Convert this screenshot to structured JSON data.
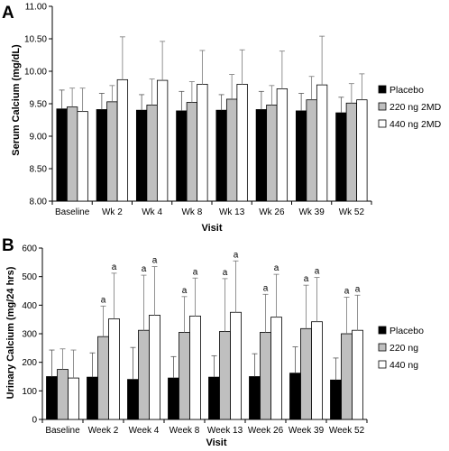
{
  "chart_data": [
    {
      "panel_label": "A",
      "type": "bar",
      "ylabel": "Serum Calcium (mg/dL)",
      "xlabel": "Visit",
      "ylim": [
        8.0,
        11.0
      ],
      "yticks": [
        "8.00",
        "8.50",
        "9.00",
        "9.50",
        "10.00",
        "10.50",
        "11.00"
      ],
      "grid": false,
      "legend_position": "right",
      "categories": [
        "Baseline",
        "Wk 2",
        "Wk 4",
        "Wk 8",
        "Wk 13",
        "Wk 26",
        "Wk 39",
        "Wk 52"
      ],
      "series": [
        {
          "name": "Placebo",
          "color": "#000000",
          "values": [
            9.42,
            9.41,
            9.4,
            9.39,
            9.4,
            9.41,
            9.39,
            9.36
          ],
          "errors": [
            0.29,
            0.25,
            0.24,
            0.3,
            0.24,
            0.28,
            0.27,
            0.24
          ]
        },
        {
          "name": "220 ng 2MD",
          "color": "#bfbfbf",
          "values": [
            9.45,
            9.53,
            9.48,
            9.52,
            9.57,
            9.48,
            9.56,
            9.51
          ],
          "errors": [
            0.29,
            0.25,
            0.4,
            0.32,
            0.38,
            0.3,
            0.36,
            0.3
          ]
        },
        {
          "name": "440 ng 2MD",
          "color": "#ffffff",
          "values": [
            9.38,
            9.87,
            9.86,
            9.8,
            9.8,
            9.73,
            9.79,
            9.56
          ],
          "errors": [
            0.36,
            0.66,
            0.6,
            0.52,
            0.53,
            0.58,
            0.75,
            0.4
          ]
        }
      ]
    },
    {
      "panel_label": "B",
      "type": "bar",
      "ylabel": "Urinary Calcium (mg/24 hrs)",
      "xlabel": "Visit",
      "ylim": [
        0,
        600
      ],
      "yticks": [
        "0",
        "100",
        "200",
        "300",
        "400",
        "500",
        "600"
      ],
      "grid": false,
      "legend_position": "right",
      "categories": [
        "Baseline",
        "Week 2",
        "Week 4",
        "Week 8",
        "Week 13",
        "Week 26",
        "Week 39",
        "Week 52"
      ],
      "series": [
        {
          "name": "Placebo",
          "color": "#000000",
          "values": [
            150,
            148,
            140,
            145,
            148,
            150,
            162,
            138
          ],
          "errors": [
            93,
            85,
            112,
            75,
            75,
            80,
            92,
            77
          ],
          "annotations": [
            "",
            "",
            "",
            "",
            "",
            "",
            "",
            ""
          ]
        },
        {
          "name": "220 ng",
          "color": "#bfbfbf",
          "values": [
            175,
            290,
            312,
            305,
            308,
            305,
            318,
            300
          ],
          "errors": [
            72,
            107,
            193,
            125,
            185,
            133,
            152,
            128
          ],
          "annotations": [
            "",
            "a",
            "a",
            "a",
            "a",
            "a",
            "a",
            "a"
          ]
        },
        {
          "name": "440 ng",
          "color": "#ffffff",
          "values": [
            145,
            352,
            365,
            362,
            375,
            358,
            342,
            312
          ],
          "errors": [
            98,
            160,
            170,
            133,
            180,
            150,
            155,
            123
          ],
          "annotations": [
            "",
            "a",
            "a",
            "a",
            "a",
            "a",
            "a",
            "a"
          ]
        }
      ]
    }
  ]
}
